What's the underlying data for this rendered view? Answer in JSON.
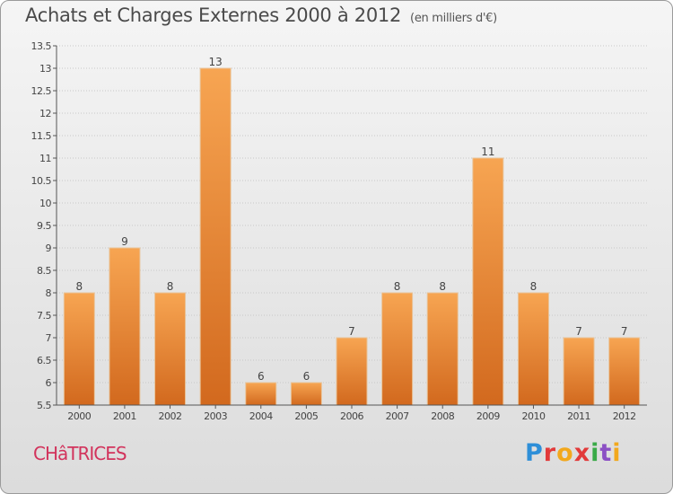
{
  "header": {
    "title": "Achats et Charges Externes 2000 à 2012",
    "unit": "(en milliers d'€)"
  },
  "footer": {
    "commune": "CHâTRICES",
    "logo": "Proxiti"
  },
  "colors": {
    "bar_light": "#f7a552",
    "bar_dark": "#d2691e",
    "bar_edge": "#e8c49a",
    "commune": "#d2335c",
    "grid": "#c8c8c8"
  },
  "chart_data": {
    "type": "bar",
    "title": "Achats et Charges Externes 2000 à 2012",
    "subtitle": "(en milliers d'€)",
    "categories": [
      "2000",
      "2001",
      "2002",
      "2003",
      "2004",
      "2005",
      "2006",
      "2007",
      "2008",
      "2009",
      "2010",
      "2011",
      "2012"
    ],
    "values": [
      8,
      9,
      8,
      13,
      6,
      6,
      7,
      8,
      8,
      11,
      8,
      7,
      7
    ],
    "data_labels": [
      "8",
      "9",
      "8",
      "13",
      "6",
      "6",
      "7",
      "8",
      "8",
      "11",
      "8",
      "7",
      "7"
    ],
    "ylim": [
      5.5,
      13.5
    ],
    "yticks": [
      5.5,
      6,
      6.5,
      7,
      7.5,
      8,
      8.5,
      9,
      9.5,
      10,
      10.5,
      11,
      11.5,
      12,
      12.5,
      13,
      13.5
    ],
    "ytick_labels": [
      "5.5",
      "6",
      "6.5",
      "7",
      "7.5",
      "8",
      "8.5",
      "9",
      "9.5",
      "10",
      "10.5",
      "11",
      "11.5",
      "12",
      "12.5",
      "13",
      "13.5"
    ],
    "grid": true,
    "xlabel": "",
    "ylabel": ""
  }
}
